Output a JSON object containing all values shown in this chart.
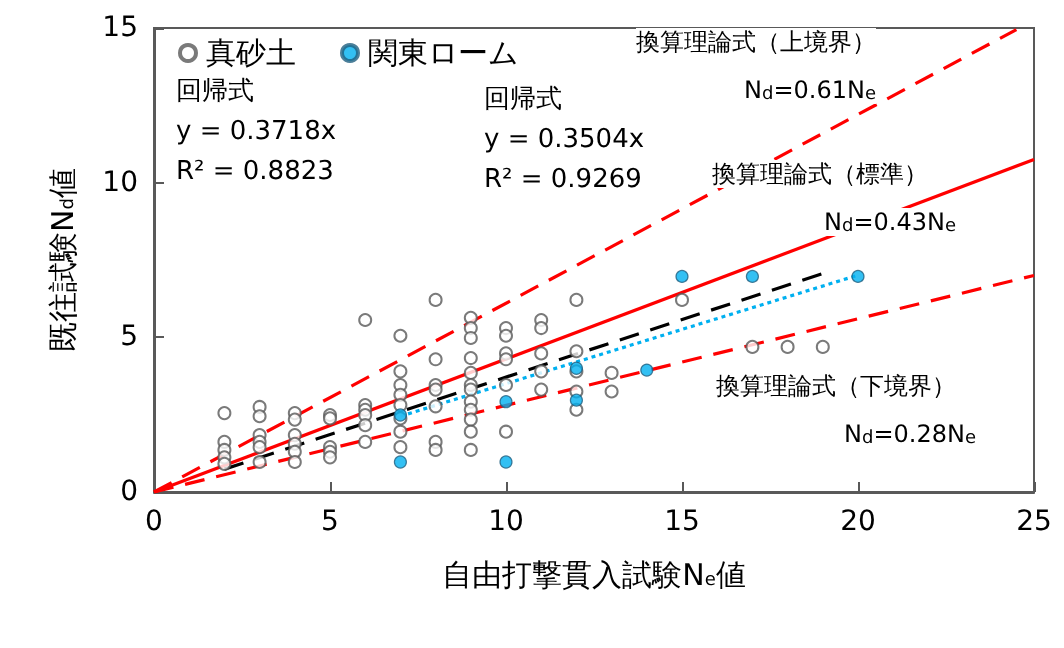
{
  "chart_data": {
    "type": "scatter",
    "xlabel": "自由打撃貫入試験N$_{e}$値",
    "ylabel": "既往試験N$_{d}$値",
    "xlim": [
      0,
      25
    ],
    "xticks": [
      0,
      5,
      10,
      15,
      20,
      25
    ],
    "ylim": [
      0,
      15
    ],
    "yticks": [
      0,
      5,
      10,
      15
    ],
    "grid": false,
    "legend": "top left",
    "series": [
      {
        "name": "真砂土",
        "marker": "circle",
        "color": "#595959",
        "x": [
          2,
          2,
          2,
          2,
          2,
          3,
          3,
          3,
          3,
          3,
          3,
          4,
          4,
          4,
          4,
          4,
          4,
          5,
          5,
          5,
          5,
          5,
          6,
          6,
          6,
          6,
          6,
          6,
          7,
          7,
          7,
          7,
          7,
          7,
          7,
          7,
          8,
          8,
          8,
          8,
          8,
          8,
          8,
          9,
          9,
          9,
          9,
          9,
          9,
          9,
          9,
          9,
          9,
          9,
          9,
          10,
          10,
          10,
          10,
          10,
          10,
          11,
          11,
          11,
          11,
          11,
          12,
          12,
          12,
          12,
          12,
          13,
          13,
          15,
          17,
          18,
          19
        ],
        "values": [
          2.55,
          1.62,
          1.36,
          1.12,
          0.91,
          2.75,
          2.45,
          1.84,
          1.62,
          1.45,
          0.97,
          2.55,
          2.34,
          1.84,
          1.56,
          1.3,
          0.97,
          2.49,
          2.38,
          1.45,
          1.3,
          1.12,
          5.56,
          2.81,
          2.66,
          2.49,
          2.16,
          1.62,
          5.05,
          3.9,
          3.46,
          3.14,
          2.81,
          2.38,
          1.95,
          1.45,
          6.21,
          4.29,
          3.46,
          3.31,
          2.77,
          1.62,
          1.36,
          5.63,
          5.3,
          4.98,
          4.33,
          3.85,
          3.46,
          3.31,
          2.92,
          2.66,
          2.34,
          1.95,
          1.36,
          5.3,
          5.05,
          4.48,
          4.29,
          3.46,
          1.95,
          5.56,
          5.3,
          4.48,
          3.9,
          3.31,
          6.21,
          4.55,
          3.9,
          3.25,
          2.66,
          3.85,
          3.25,
          6.21,
          4.69,
          4.69,
          4.69
        ]
      },
      {
        "name": "関東ローム",
        "marker": "circle",
        "color": "#00b0f0",
        "x": [
          7,
          7,
          10,
          10,
          12,
          12,
          14,
          15,
          17,
          20
        ],
        "values": [
          2.49,
          0.97,
          2.92,
          0.97,
          4.0,
          2.97,
          3.94,
          6.97,
          6.97,
          6.97
        ]
      },
      {
        "type": "line",
        "color": "#ff0000",
        "line_style": "dashed",
        "x": [
          0,
          24.5
        ],
        "values": [
          0,
          14.95
        ]
      },
      {
        "type": "line",
        "color": "#ff0000",
        "line_style": "solid",
        "x": [
          0,
          25
        ],
        "values": [
          0,
          10.75
        ]
      },
      {
        "type": "line",
        "color": "#ff0000",
        "line_style": "dashed",
        "x": [
          0,
          25
        ],
        "values": [
          0,
          7
        ]
      },
      {
        "type": "line",
        "color": "#000000",
        "line_style": "dashed",
        "x": [
          2,
          19
        ],
        "values": [
          0.74,
          7.06
        ]
      },
      {
        "type": "line",
        "color": "#00b0f0",
        "line_style": "dotted",
        "x": [
          7,
          20
        ],
        "values": [
          2.45,
          7.01
        ]
      }
    ],
    "annotations": [
      "回帰式\ny = 0.3718x\nR² = 0.8823",
      "回帰式\ny = 0.3504x\nR² = 0.9269",
      "換算理論式（上境界）",
      "N$_{d}$=0.61N$_{e}$",
      "換算理論式（標準）",
      "N$_{d}$=0.43N$_{e}$",
      "換算理論式（下境界）",
      "N$_{d}$=0.28N$_{e}$"
    ]
  }
}
